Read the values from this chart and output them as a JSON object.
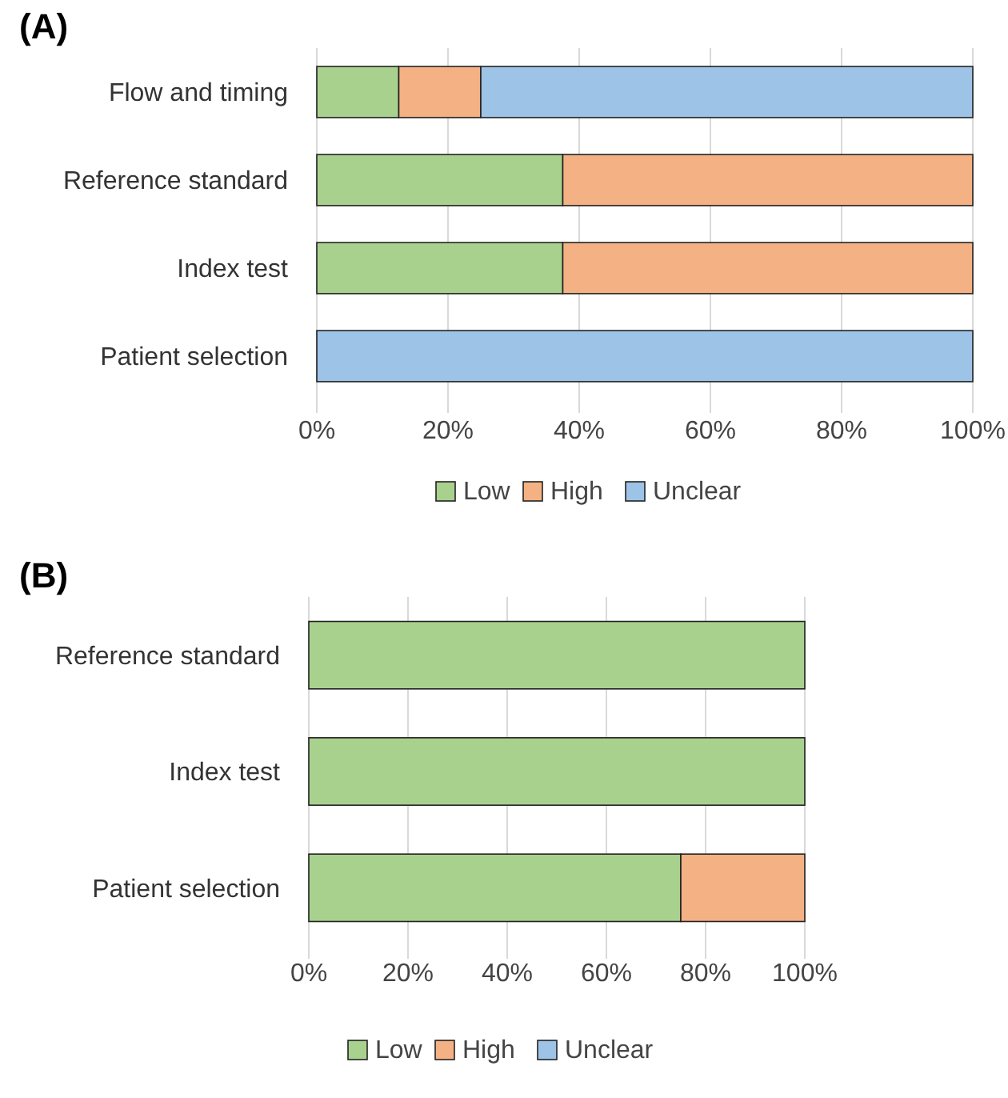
{
  "chart_data": [
    {
      "type": "bar",
      "title": "(A)",
      "orientation": "horizontal",
      "stacked": true,
      "categories": [
        "Flow and timing",
        "Reference standard",
        "Index test",
        "Patient selection"
      ],
      "series": [
        {
          "name": "Low",
          "color": "#a9d18e",
          "values": [
            12.5,
            37.5,
            37.5,
            0
          ]
        },
        {
          "name": "High",
          "color": "#f4b183",
          "values": [
            12.5,
            62.5,
            62.5,
            0
          ]
        },
        {
          "name": "Unclear",
          "color": "#9dc3e6",
          "values": [
            75,
            0,
            0,
            100
          ]
        }
      ],
      "xlim": [
        0,
        100
      ],
      "xticks": [
        {
          "value": 0,
          "label": "0%"
        },
        {
          "value": 20,
          "label": "20%"
        },
        {
          "value": 40,
          "label": "40%"
        },
        {
          "value": 60,
          "label": "60%"
        },
        {
          "value": 80,
          "label": "80%"
        },
        {
          "value": 100,
          "label": "100%"
        }
      ],
      "grid": "x",
      "legend": "bottom"
    },
    {
      "type": "bar",
      "title": "(B)",
      "orientation": "horizontal",
      "stacked": true,
      "categories": [
        "Reference standard",
        "Index test",
        "Patient selection"
      ],
      "series": [
        {
          "name": "Low",
          "color": "#a9d18e",
          "values": [
            100,
            100,
            75
          ]
        },
        {
          "name": "High",
          "color": "#f4b183",
          "values": [
            0,
            0,
            25
          ]
        },
        {
          "name": "Unclear",
          "color": "#9dc3e6",
          "values": [
            0,
            0,
            0
          ]
        }
      ],
      "xlim": [
        0,
        100
      ],
      "xticks": [
        {
          "value": 0,
          "label": "0%"
        },
        {
          "value": 20,
          "label": "20%"
        },
        {
          "value": 40,
          "label": "40%"
        },
        {
          "value": 60,
          "label": "60%"
        },
        {
          "value": 80,
          "label": "80%"
        },
        {
          "value": 100,
          "label": "100%"
        }
      ],
      "grid": "x",
      "legend": "bottom"
    }
  ]
}
